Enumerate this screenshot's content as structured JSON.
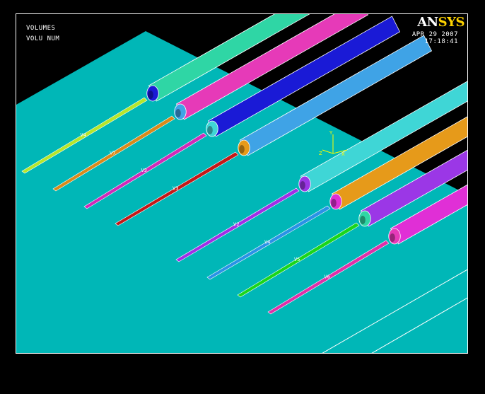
{
  "hud": {
    "line1": "VOLUMES",
    "line2": "VOLU NUM",
    "date": "APR 29 2007",
    "time": "17:18:41"
  },
  "logo": {
    "part1": "AN",
    "part2": "SYS"
  },
  "axis": {
    "y": "Y",
    "x": "X",
    "z": "Z"
  },
  "colors": {
    "background": "#000000",
    "plate": "#00b7b7",
    "pipe_colors": [
      "#2fd6a5",
      "#e63ab8",
      "#1a1ad6",
      "#3fa3e6",
      "#3fd6d6",
      "#e69a1a",
      "#9b37e6",
      "#e02fd6"
    ],
    "cable_colors": [
      "#b6e62a",
      "#d98a1a",
      "#d02ab8",
      "#c41818",
      "#a12ee6",
      "#2a92e6",
      "#1ad61a",
      "#e02fa8"
    ]
  },
  "volume_labels": [
    "V4",
    "V7",
    "V3",
    "V3",
    "V2",
    "V4",
    "V5",
    "V6"
  ]
}
